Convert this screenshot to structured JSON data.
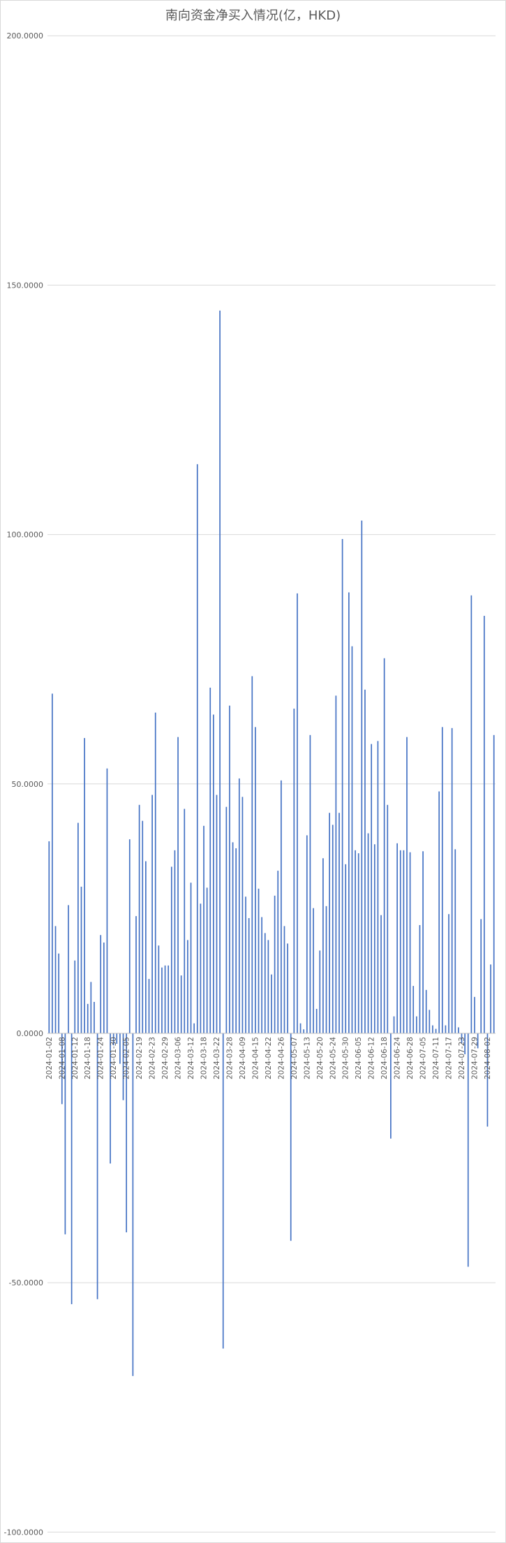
{
  "chart_data": {
    "type": "bar",
    "title": "南向资金净买入情况(亿，HKD)",
    "xlabel": "",
    "ylabel": "",
    "ylim": [
      -100,
      200
    ],
    "y_ticks": [
      200,
      150,
      100,
      50,
      0,
      -50,
      -100
    ],
    "y_tick_labels": [
      "200.0000",
      "150.0000",
      "100.0000",
      "50.0000",
      "0.0000",
      "-50.0000",
      "-100.0000"
    ],
    "x_tick_labels": [
      "2024-01-02",
      "2024-01-08",
      "2024-01-12",
      "2024-01-18",
      "2024-01-24",
      "2024-01-30",
      "2024-02-05",
      "2024-02-19",
      "2024-02-23",
      "2024-02-29",
      "2024-03-06",
      "2024-03-12",
      "2024-03-18",
      "2024-03-22",
      "2024-03-28",
      "2024-04-09",
      "2024-04-15",
      "2024-04-22",
      "2024-04-26",
      "2024-05-07",
      "2024-05-13",
      "2024-05-20",
      "2024-05-24",
      "2024-05-30",
      "2024-06-05",
      "2024-06-12",
      "2024-06-18",
      "2024-06-24",
      "2024-06-28",
      "2024-07-05",
      "2024-07-11",
      "2024-07-17",
      "2024-07-23",
      "2024-07-29",
      "2024-08-02"
    ],
    "values": [
      38.5,
      68.1,
      21.5,
      16.0,
      -14.2,
      -40.3,
      25.7,
      -54.3,
      14.6,
      42.2,
      29.4,
      59.2,
      5.9,
      10.3,
      6.3,
      -53.3,
      19.7,
      18.2,
      53.1,
      -26.1,
      -2.4,
      -2.1,
      -6.1,
      -13.4,
      -39.9,
      38.9,
      -68.7,
      23.5,
      45.8,
      42.6,
      34.5,
      10.9,
      47.8,
      64.3,
      17.6,
      13.2,
      13.6,
      13.6,
      33.4,
      36.7,
      59.4,
      11.6,
      45.0,
      18.7,
      30.2,
      2.0,
      114.1,
      26.0,
      41.6,
      29.2,
      69.3,
      63.9,
      47.8,
      144.9,
      -63.2,
      45.4,
      65.7,
      38.3,
      37.1,
      51.1,
      47.4,
      27.4,
      23.1,
      71.6,
      61.4,
      29.0,
      23.3,
      20.1,
      18.7,
      11.8,
      27.6,
      32.6,
      50.7,
      21.5,
      18.0,
      -41.6,
      65.1,
      88.2,
      2.0,
      0.8,
      39.7,
      59.8,
      25.1,
      4.9,
      16.6,
      35.1,
      25.5,
      44.2,
      41.8,
      67.7,
      44.2,
      99.1,
      33.9,
      88.4,
      77.6,
      36.7,
      36.1,
      102.8,
      68.9,
      40.1,
      58.0,
      37.9,
      58.6,
      23.7,
      75.2,
      45.8,
      -21.1,
      3.4,
      38.1,
      36.7,
      36.7,
      59.4,
      36.3,
      9.5,
      3.4,
      21.7,
      36.5,
      8.7,
      4.7,
      1.6,
      0.9,
      48.5,
      61.4,
      1.6,
      23.9,
      61.2,
      36.9,
      1.2,
      -2.0,
      -4.2,
      -46.8,
      87.8,
      7.3,
      -3.0,
      22.9,
      83.7,
      -18.7,
      13.8,
      59.8
    ],
    "grid": true,
    "legend": "none",
    "colors": {
      "bar": "#4472C4",
      "gridline": "#D9D9D9",
      "axis": "#BFBFBF",
      "text": "#595959",
      "border": "#D9D9D9"
    }
  }
}
